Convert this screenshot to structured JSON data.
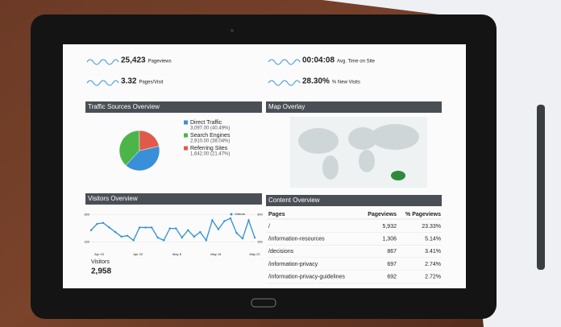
{
  "metrics": [
    {
      "value": "25,423",
      "label": "Pageviews"
    },
    {
      "value": "3.32",
      "label": "Pages/Visit"
    },
    {
      "value": "00:04:08",
      "label": "Avg. Time on Site"
    },
    {
      "value": "28.30%",
      "label": "% New Visits"
    }
  ],
  "traffic": {
    "title": "Traffic Sources Overview",
    "sources": [
      {
        "name": "Direct Traffic",
        "label": "3,097.00 (40.49%)",
        "share": 40.49,
        "color": "#3a8fd9"
      },
      {
        "name": "Search Engines",
        "label": "2,910.00 (38.04%)",
        "share": 38.04,
        "color": "#4bb54a"
      },
      {
        "name": "Referring Sites",
        "label": "1,642.00 (21.47%)",
        "share": 21.47,
        "color": "#e05a4a"
      }
    ]
  },
  "map": {
    "title": "Map Overlay"
  },
  "visitors": {
    "title": "Visitors Overview",
    "type": "line",
    "legend": "Visitors",
    "color": "#2f8fd8",
    "values": [
      215,
      250,
      255,
      230,
      205,
      180,
      185,
      160,
      230,
      230,
      230,
      175,
      160,
      225,
      225,
      175,
      215,
      180,
      205,
      160,
      270,
      220,
      265,
      280,
      200,
      170,
      270,
      175
    ],
    "ylim": [
      100,
      320
    ],
    "yticks": [
      150,
      300
    ],
    "x_labels": [
      "Apr 15",
      "Apr 22",
      "May 8",
      "May 15",
      "May 22"
    ],
    "total_label": "Visitors",
    "total": "2,958"
  },
  "content": {
    "title": "Content Overview",
    "header": [
      "Pages",
      "Pageviews",
      "% Pageviews"
    ],
    "rows": [
      [
        "/",
        "5,932",
        "23.33%"
      ],
      [
        "/information-resources",
        "1,306",
        "5.14%"
      ],
      [
        "/decisions",
        "867",
        "3.41%"
      ],
      [
        "/information-privacy",
        "697",
        "2.74%"
      ],
      [
        "/information-privacy-guidelines",
        "692",
        "2.72%"
      ]
    ]
  }
}
